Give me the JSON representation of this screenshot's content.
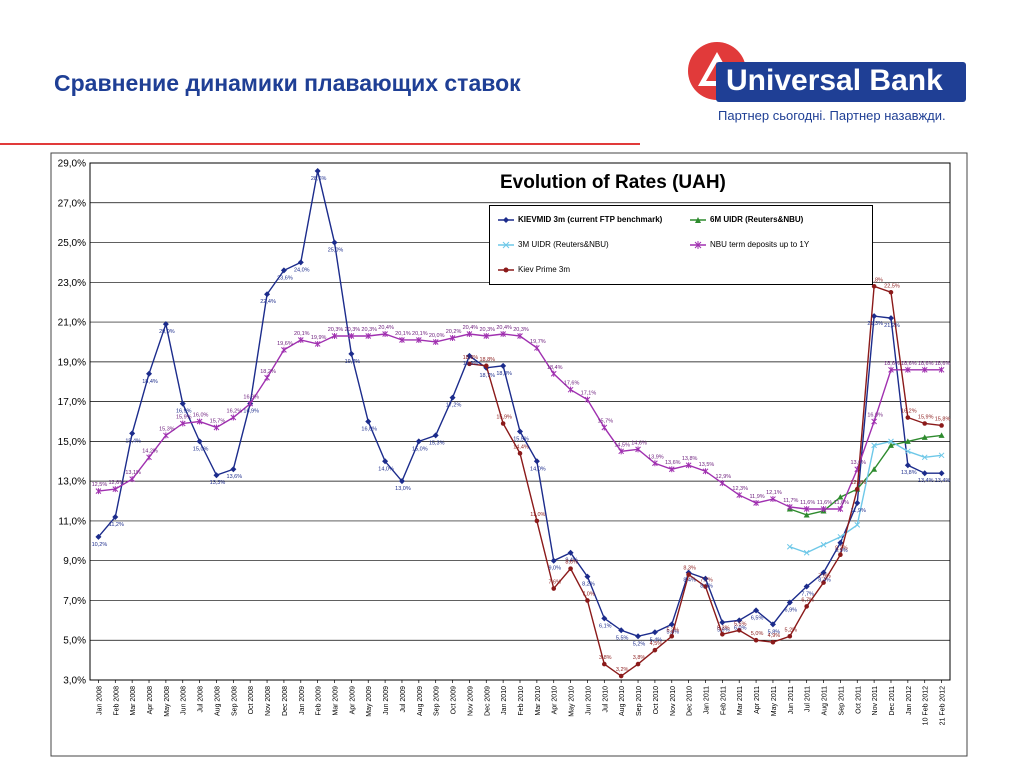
{
  "slide": {
    "title": "Сравнение динамики плавающих ставок"
  },
  "logo": {
    "name": "Universal Bank",
    "tagline": "Партнер сьогодні. Партнер назавжди.",
    "icon": "universal-bank-logo-icon",
    "colors": {
      "red": "#e13a3a",
      "blue": "#1f3f95"
    }
  },
  "chart_data": {
    "type": "line",
    "title": "Evolution of Rates (UAH)",
    "xlabel": "",
    "ylabel": "",
    "ylim": [
      3,
      29
    ],
    "yticks": [
      "3,0%",
      "5,0%",
      "7,0%",
      "9,0%",
      "11,0%",
      "13,0%",
      "15,0%",
      "17,0%",
      "19,0%",
      "21,0%",
      "23,0%",
      "25,0%",
      "27,0%",
      "29,0%"
    ],
    "grid": true,
    "legend_position": "top-right",
    "categories": [
      "Jan 2008",
      "Feb 2008",
      "Mar 2008",
      "Apr 2008",
      "May 2008",
      "Jun 2008",
      "Jul 2008",
      "Aug 2008",
      "Sep 2008",
      "Oct 2008",
      "Nov 2008",
      "Dec 2008",
      "Jan 2009",
      "Feb 2009",
      "Mar 2009",
      "Apr 2009",
      "May 2009",
      "Jun 2009",
      "Jul 2009",
      "Aug 2009",
      "Sep 2009",
      "Oct 2009",
      "Nov 2009",
      "Dec 2009",
      "Jan 2010",
      "Feb 2010",
      "Mar 2010",
      "Apr 2010",
      "May 2010",
      "Jun 2010",
      "Jul 2010",
      "Aug 2010",
      "Sep 2010",
      "Oct 2010",
      "Nov 2010",
      "Dec 2010",
      "Jan 2011",
      "Feb 2011",
      "Mar 2011",
      "Apr 2011",
      "May 2011",
      "Jun 2011",
      "Jul 2011",
      "Aug 2011",
      "Sep 2011",
      "Oct 2011",
      "Nov 2011",
      "Dec 2011",
      "Jan 2012",
      "10 Feb 2012",
      "21 Feb 2012"
    ],
    "series": [
      {
        "name": "KIEVMID 3m (current FTP benchmark)",
        "color": "#1c2c8c",
        "marker": "diamond",
        "values": [
          10.2,
          11.2,
          15.4,
          18.4,
          20.9,
          16.9,
          15.0,
          13.3,
          13.6,
          16.9,
          22.4,
          23.6,
          24.0,
          28.6,
          25.0,
          19.4,
          16.0,
          14.0,
          13.0,
          15.0,
          15.3,
          17.2,
          19.3,
          18.7,
          18.8,
          15.5,
          14.0,
          9.0,
          9.4,
          8.2,
          6.1,
          5.5,
          5.2,
          5.4,
          5.8,
          8.4,
          8.1,
          5.9,
          6.0,
          6.5,
          5.8,
          6.9,
          7.7,
          8.4,
          9.9,
          11.9,
          21.3,
          21.2,
          13.8,
          13.4,
          13.4
        ]
      },
      {
        "name": "6M UIDR (Reuters&NBU)",
        "color": "#2e8b2e",
        "marker": "triangle",
        "values": [
          null,
          null,
          null,
          null,
          null,
          null,
          null,
          null,
          null,
          null,
          null,
          null,
          null,
          null,
          null,
          null,
          null,
          null,
          null,
          null,
          null,
          null,
          null,
          null,
          null,
          null,
          null,
          null,
          null,
          null,
          null,
          null,
          null,
          null,
          null,
          null,
          null,
          null,
          null,
          null,
          null,
          11.6,
          11.3,
          11.5,
          12.2,
          12.6,
          13.6,
          14.8,
          15.0,
          15.2,
          15.3
        ]
      },
      {
        "name": "3M UIDR (Reuters&NBU)",
        "color": "#6ec8e8",
        "marker": "cross",
        "values": [
          null,
          null,
          null,
          null,
          null,
          null,
          null,
          null,
          null,
          null,
          null,
          null,
          null,
          null,
          null,
          null,
          null,
          null,
          null,
          null,
          null,
          null,
          null,
          null,
          null,
          null,
          null,
          null,
          null,
          null,
          null,
          null,
          null,
          null,
          null,
          null,
          null,
          null,
          null,
          null,
          null,
          9.7,
          9.4,
          9.8,
          10.2,
          10.8,
          14.8,
          15.0,
          14.5,
          14.2,
          14.3
        ]
      },
      {
        "name": "NBU term deposits up to 1Y",
        "color": "#a030b0",
        "marker": "star",
        "values": [
          12.5,
          12.6,
          13.1,
          14.2,
          15.3,
          15.9,
          16.0,
          15.7,
          16.2,
          16.9,
          18.2,
          19.6,
          20.1,
          19.9,
          20.3,
          20.3,
          20.3,
          20.4,
          20.1,
          20.1,
          20.0,
          20.2,
          20.4,
          20.3,
          20.4,
          20.3,
          19.7,
          18.4,
          17.6,
          17.1,
          15.7,
          14.5,
          14.6,
          13.9,
          13.6,
          13.8,
          13.5,
          12.9,
          12.3,
          11.9,
          12.1,
          11.7,
          11.6,
          11.6,
          11.6,
          13.6,
          16.0,
          18.6,
          18.6,
          18.6,
          18.6
        ]
      },
      {
        "name": "Kiev Prime 3m",
        "color": "#8b1a1a",
        "marker": "circle",
        "values": [
          null,
          null,
          null,
          null,
          null,
          null,
          null,
          null,
          null,
          null,
          null,
          null,
          null,
          null,
          null,
          null,
          null,
          null,
          null,
          null,
          null,
          null,
          18.9,
          18.8,
          15.9,
          14.4,
          11.0,
          7.6,
          8.6,
          7.0,
          3.8,
          3.2,
          3.8,
          4.5,
          5.2,
          8.3,
          7.7,
          5.3,
          5.5,
          5.0,
          4.9,
          5.2,
          6.7,
          7.9,
          9.3,
          12.6,
          22.8,
          22.5,
          16.2,
          15.9,
          15.8
        ]
      }
    ],
    "labels": {
      "kievmid": [
        "10,2%",
        "11,2%",
        "15,4%",
        "18,4%",
        "20,9%",
        "16,9%",
        "15,0%",
        "13,3%",
        "13,6%",
        "16,9%",
        "22,4%",
        "23,6%",
        "24,0%",
        "28,6%",
        "25,0%",
        "19,4%",
        "16,0%",
        "14,0%",
        "13,0%",
        "15,0%",
        "15,3%",
        "17,2%",
        "19,3%",
        "18,7%",
        "18,8%",
        "15,5%",
        "14,0%",
        "9,0%",
        "9,4%",
        "8,2%",
        "6,1%",
        "5,5%",
        "5,2%",
        "5,4%",
        "5,8%",
        "8,4%",
        "8,1%",
        "5,9%",
        "6,0%",
        "6,5%",
        "5,8%",
        "6,9%",
        "7,7%",
        "8,4%",
        "9,9%",
        "11,9%",
        "21,3%",
        "21,2%",
        "13,8%",
        "13,4%",
        "13,4%"
      ],
      "nbu": [
        "12,5%",
        "12,6%",
        "13,1%",
        "14,2%",
        "15,3%",
        "15,9%",
        "16,0%",
        "15,7%",
        "16,2%",
        "16,9%",
        "18,2%",
        "19,6%",
        "20,1%",
        "19,9%",
        "20,3%",
        "20,3%",
        "20,3%",
        "20,4%",
        "20,1%",
        "20,1%",
        "20,0%",
        "20,2%",
        "20,4%",
        "20,3%",
        "20,4%",
        "20,3%",
        "19,7%",
        "18,4%",
        "17,6%",
        "17,1%",
        "15,7%",
        "14,5%",
        "14,6%",
        "13,9%",
        "13,6%",
        "13,8%",
        "13,5%",
        "12,9%",
        "12,3%",
        "11,9%",
        "12,1%",
        "11,7%",
        "11,6%",
        "11,6%",
        "11,6%",
        "13,6%",
        "16,0%",
        "18,6%",
        "18,6%",
        "18,6%",
        "18,6%"
      ],
      "prime": [
        "",
        "",
        "",
        "",
        "",
        "",
        "",
        "",
        "",
        "",
        "",
        "",
        "",
        "",
        "",
        "",
        "",
        "",
        "",
        "",
        "",
        "",
        "18,9%",
        "18,8%",
        "15,9%",
        "14,4%",
        "11,0%",
        "7,6%",
        "8,6%",
        "7,0%",
        "3,8%",
        "3,2%",
        "3,8%",
        "4,5%",
        "5,2%",
        "8,3%",
        "7,7%",
        "5,3%",
        "5,5%",
        "5,0%",
        "4,9%",
        "5,2%",
        "6,7%",
        "7,9%",
        "9,3%",
        "12,6%",
        "22,8%",
        "22,5%",
        "16,2%",
        "15,9%",
        "15,8%"
      ]
    }
  }
}
